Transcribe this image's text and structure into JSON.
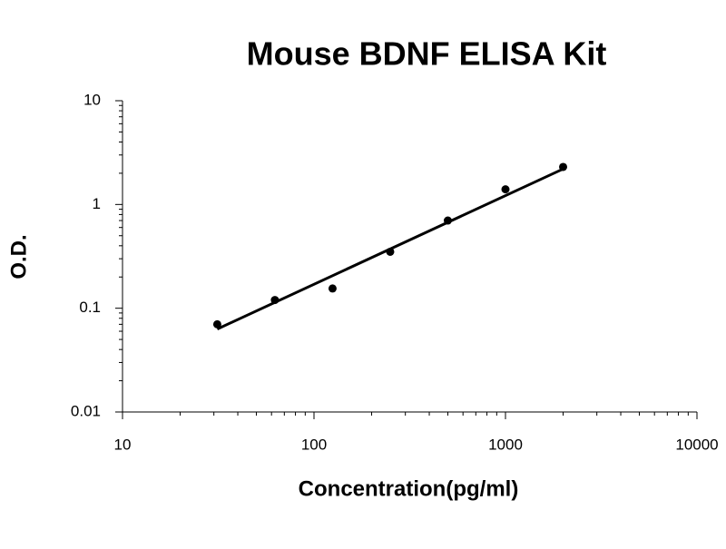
{
  "chart_data": {
    "type": "scatter",
    "title": "Mouse BDNF ELISA Kit",
    "x_label": "Concentration(pg/ml)",
    "y_label": "O.D.",
    "x": [
      31.25,
      62.5,
      125,
      250,
      500,
      1000,
      2000
    ],
    "values": [
      0.07,
      0.12,
      0.155,
      0.35,
      0.7,
      1.4,
      2.3
    ],
    "color": "#000000",
    "xlog": true,
    "ylog": true,
    "xlim": [
      10,
      10000
    ],
    "ylim": [
      0.01,
      10
    ],
    "xticks": [
      10,
      100,
      1000,
      10000
    ],
    "yticks": [
      0.01,
      0.1,
      1,
      10
    ],
    "trendline": {
      "x": [
        31.25,
        2000
      ],
      "values": [
        0.063,
        2.2
      ]
    }
  }
}
